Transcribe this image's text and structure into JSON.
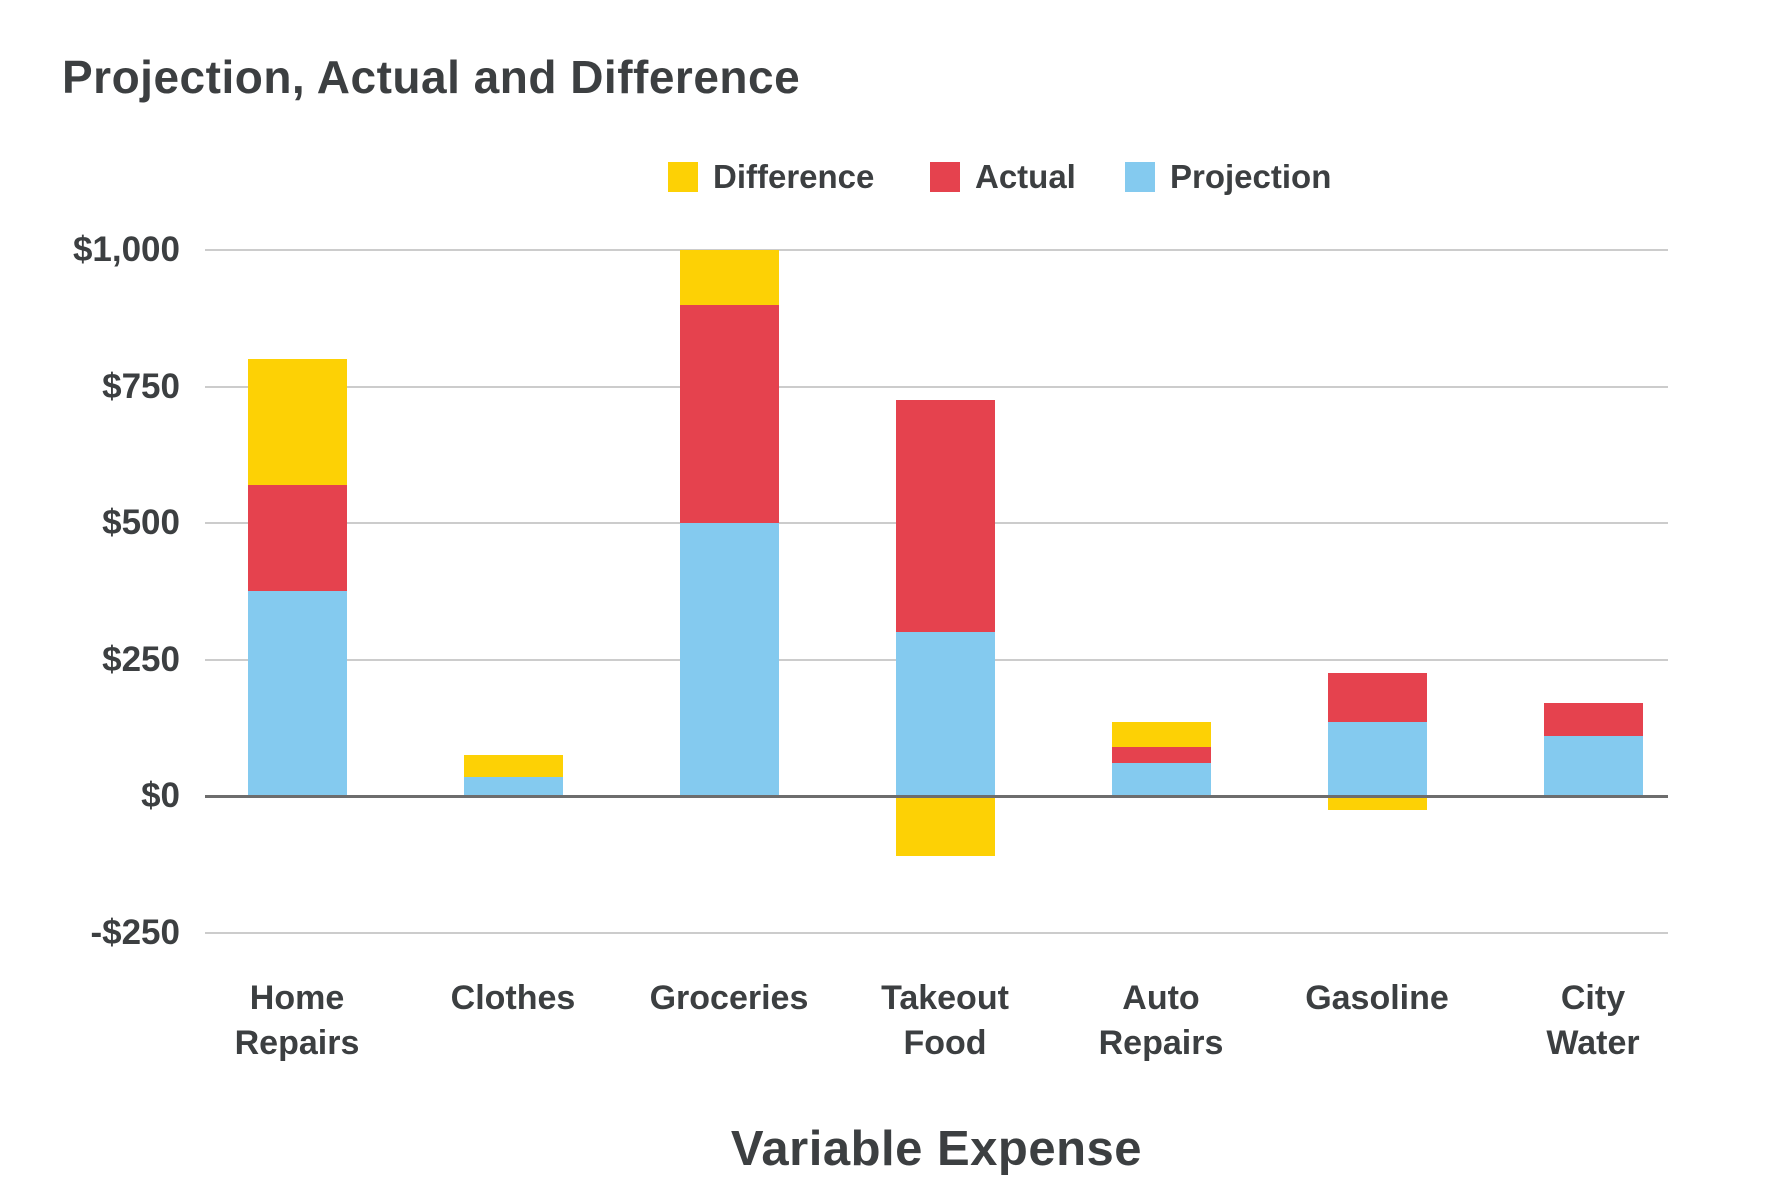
{
  "title": "Projection, Actual and Difference",
  "x_axis_title": "Variable Expense",
  "colors": {
    "projection": "#84caef",
    "actual": "#e5424e",
    "difference": "#fdd105",
    "text": "#3c3f41",
    "gridline": "#cccccc",
    "zero_line": "#6d6d6d",
    "background": "#ffffff"
  },
  "legend": [
    {
      "label": "Difference",
      "color": "#fdd105"
    },
    {
      "label": "Actual",
      "color": "#e5424e"
    },
    {
      "label": "Projection",
      "color": "#84caef"
    }
  ],
  "y_axis": {
    "tick_labels": [
      "$1,000",
      "$750",
      "$500",
      "$250",
      "$0",
      "-$250"
    ],
    "tick_values": [
      1000,
      750,
      500,
      250,
      0,
      -250
    ]
  },
  "x_axis": {
    "category_lines": [
      [
        "Home",
        "Repairs"
      ],
      [
        "Clothes"
      ],
      [
        "Groceries"
      ],
      [
        "Takeout",
        "Food"
      ],
      [
        "Auto",
        "Repairs"
      ],
      [
        "Gasoline"
      ],
      [
        "City",
        "Water"
      ]
    ]
  },
  "chart_data": {
    "type": "bar",
    "stacked": true,
    "title": "Projection, Actual and Difference",
    "xlabel": "Variable Expense",
    "ylabel": "",
    "ylim": [
      -250,
      1000
    ],
    "grid": true,
    "legend_position": "top",
    "categories": [
      "Home Repairs",
      "Clothes",
      "Groceries",
      "Takeout Food",
      "Auto Repairs",
      "Gasoline",
      "City Water"
    ],
    "series": [
      {
        "name": "Projection",
        "color": "#84caef",
        "values": [
          375,
          35,
          500,
          300,
          60,
          135,
          110
        ]
      },
      {
        "name": "Actual",
        "color": "#e5424e",
        "values": [
          195,
          0,
          400,
          425,
          30,
          90,
          60
        ]
      },
      {
        "name": "Difference",
        "color": "#fdd105",
        "values": [
          230,
          40,
          100,
          -110,
          45,
          -25,
          0
        ]
      }
    ]
  }
}
